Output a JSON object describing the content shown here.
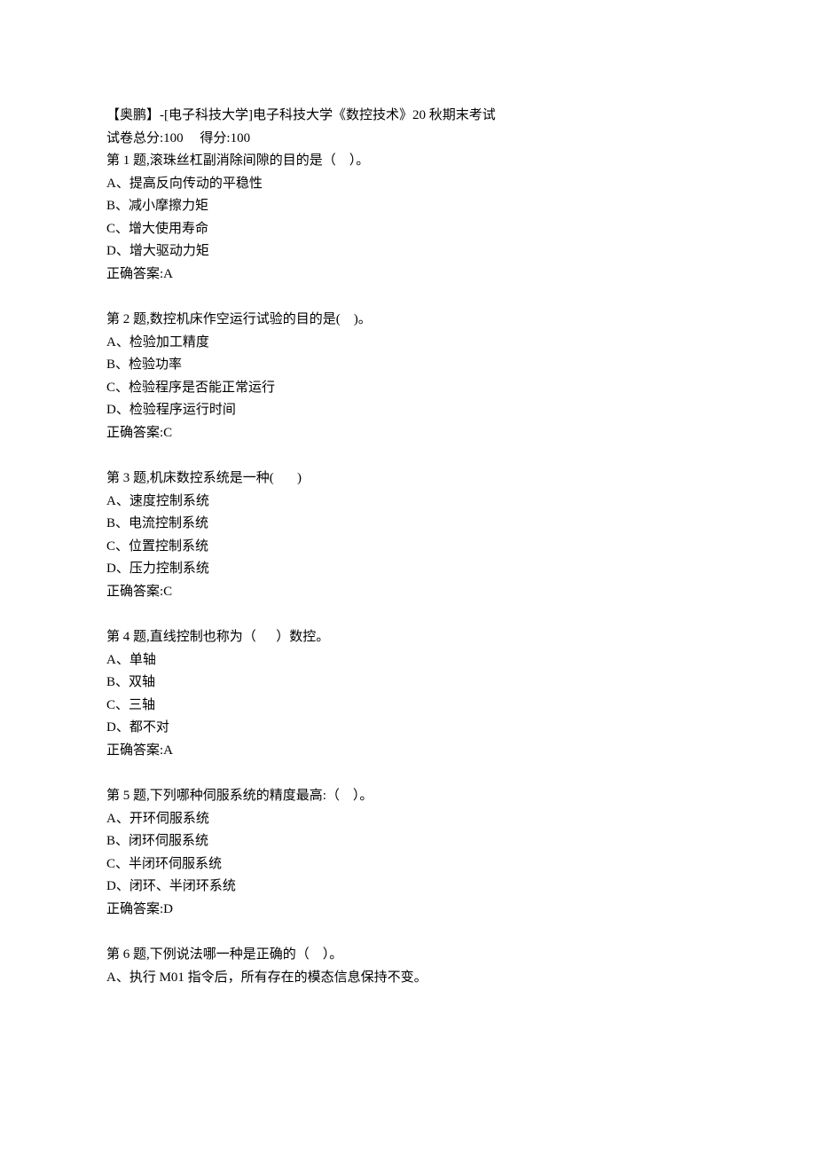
{
  "header": {
    "title": "【奥鹏】-[电子科技大学]电子科技大学《数控技术》20 秋期末考试",
    "scoreline": "试卷总分:100     得分:100"
  },
  "questions": [
    {
      "stem": "第 1 题,滚珠丝杠副消除间隙的目的是（    ）。",
      "options": [
        "A、提高反向传动的平稳性",
        "B、减小摩擦力矩",
        "C、增大使用寿命",
        "D、增大驱动力矩"
      ],
      "answer": "正确答案:A"
    },
    {
      "stem": "第 2 题,数控机床作空运行试验的目的是(    )。",
      "options": [
        "A、检验加工精度",
        "B、检验功率",
        "C、检验程序是否能正常运行",
        "D、检验程序运行时间"
      ],
      "answer": "正确答案:C"
    },
    {
      "stem": "第 3 题,机床数控系统是一种(       )",
      "options": [
        "A、速度控制系统",
        "B、电流控制系统",
        "C、位置控制系统",
        "D、压力控制系统"
      ],
      "answer": "正确答案:C"
    },
    {
      "stem": "第 4 题,直线控制也称为（      ）数控。",
      "options": [
        "A、单轴",
        "B、双轴",
        "C、三轴",
        "D、都不对"
      ],
      "answer": "正确答案:A"
    },
    {
      "stem": "第 5 题,下列哪种伺服系统的精度最高:（    ）。",
      "options": [
        "A、开环伺服系统",
        "B、闭环伺服系统",
        "C、半闭环伺服系统",
        "D、闭环、半闭环系统"
      ],
      "answer": "正确答案:D"
    },
    {
      "stem": "第 6 题,下例说法哪一种是正确的（    ）。",
      "options": [
        "A、执行 M01 指令后，所有存在的模态信息保持不变。"
      ],
      "answer": ""
    }
  ]
}
